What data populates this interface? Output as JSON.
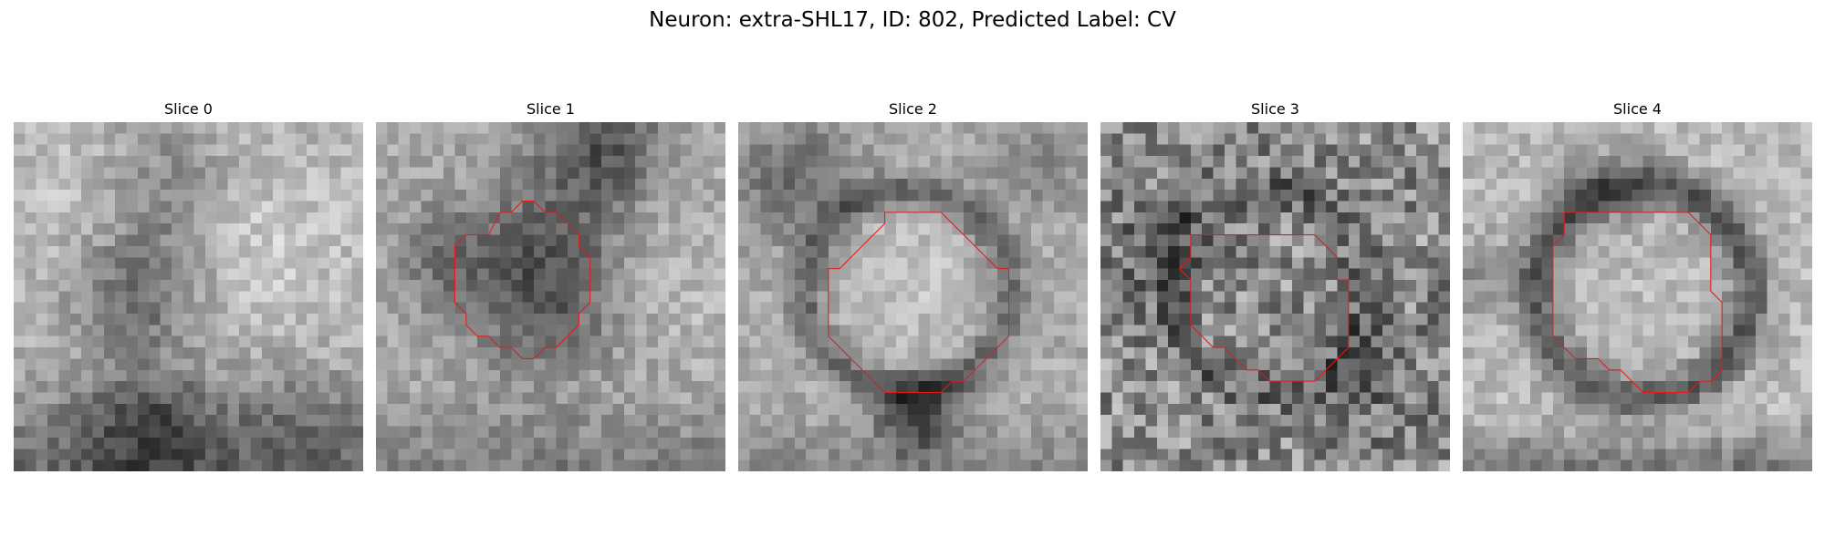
{
  "figure": {
    "title": "Neuron: extra-SHL17, ID: 802, Predicted Label: CV",
    "contour_color": "#e41a1c"
  },
  "panels": [
    {
      "title": "Slice 0",
      "has_contour": false,
      "image_description_icon": "grayscale-microscopy-slice"
    },
    {
      "title": "Slice 1",
      "has_contour": true,
      "image_description_icon": "grayscale-microscopy-slice"
    },
    {
      "title": "Slice 2",
      "has_contour": true,
      "image_description_icon": "grayscale-microscopy-slice"
    },
    {
      "title": "Slice 3",
      "has_contour": true,
      "image_description_icon": "grayscale-microscopy-slice"
    },
    {
      "title": "Slice 4",
      "has_contour": true,
      "image_description_icon": "grayscale-microscopy-slice"
    }
  ]
}
